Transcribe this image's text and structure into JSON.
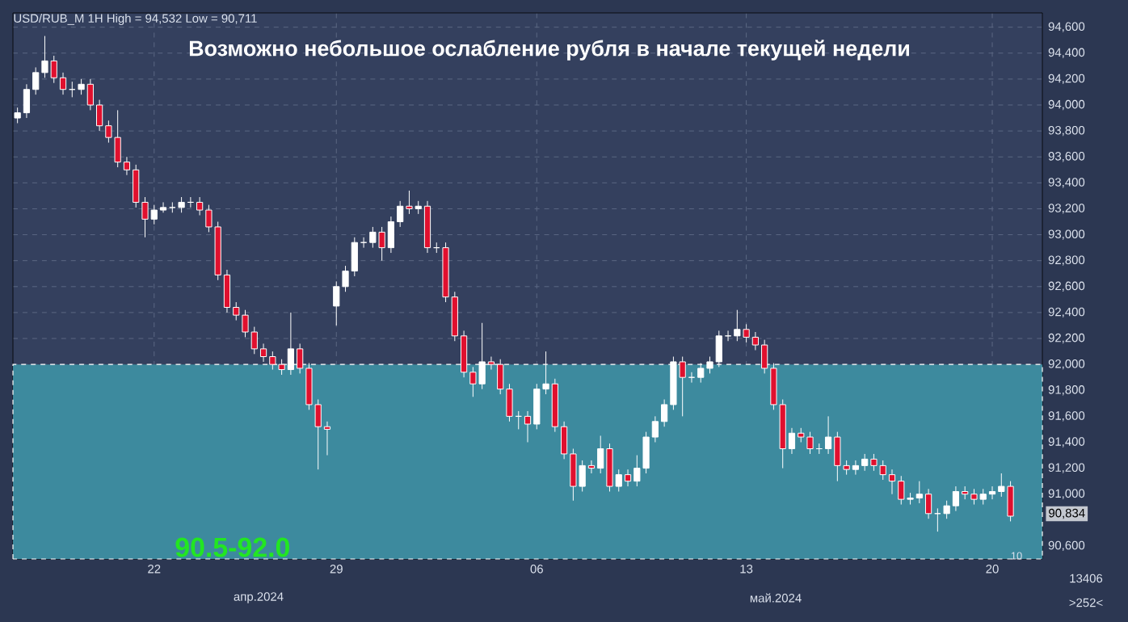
{
  "chart_data": {
    "type": "candlestick",
    "title": "Возможно небольшое ослабление рубля в начале текущей недели",
    "categories": [
      null,
      null,
      null,
      null,
      null,
      null,
      null,
      null,
      null,
      null,
      null,
      null,
      null,
      null,
      null,
      "22",
      null,
      null,
      null,
      null,
      null,
      null,
      null,
      null,
      null,
      null,
      null,
      null,
      null,
      null,
      null,
      null,
      null,
      null,
      null,
      "29",
      null,
      null,
      null,
      null,
      null,
      null,
      null,
      null,
      null,
      null,
      null,
      null,
      null,
      null,
      null,
      null,
      null,
      null,
      null,
      null,
      null,
      "06",
      null,
      null,
      null,
      null,
      null,
      null,
      null,
      null,
      null,
      null,
      null,
      null,
      null,
      null,
      null,
      null,
      null,
      null,
      null,
      null,
      null,
      null,
      "13",
      null,
      null,
      null,
      null,
      null,
      null,
      null,
      null,
      null,
      null,
      null,
      null,
      null,
      null,
      null,
      null,
      null,
      null,
      null,
      null,
      null,
      null,
      null,
      null,
      null,
      null,
      "20",
      null,
      null
    ],
    "ohlc": [
      [
        93900,
        93980,
        93860,
        93940
      ],
      [
        93940,
        94160,
        93900,
        94120
      ],
      [
        94120,
        94290,
        94080,
        94250
      ],
      [
        94250,
        94532,
        94210,
        94340
      ],
      [
        94340,
        94380,
        94170,
        94210
      ],
      [
        94210,
        94250,
        94080,
        94120
      ],
      [
        94120,
        94180,
        94060,
        94120
      ],
      [
        94120,
        94200,
        94080,
        94160
      ],
      [
        94160,
        94200,
        93960,
        94000
      ],
      [
        94000,
        94040,
        93800,
        93840
      ],
      [
        93840,
        93880,
        93710,
        93750
      ],
      [
        93750,
        93960,
        93520,
        93560
      ],
      [
        93560,
        93600,
        93460,
        93500
      ],
      [
        93500,
        93540,
        93210,
        93250
      ],
      [
        93250,
        93290,
        92980,
        93120
      ],
      [
        93120,
        93230,
        93080,
        93190
      ],
      [
        93190,
        93250,
        93170,
        93210
      ],
      [
        93210,
        93250,
        93170,
        93210
      ],
      [
        93210,
        93290,
        93170,
        93250
      ],
      [
        93250,
        93290,
        93210,
        93250
      ],
      [
        93250,
        93290,
        93150,
        93190
      ],
      [
        93190,
        93230,
        93020,
        93060
      ],
      [
        93060,
        93100,
        92650,
        92690
      ],
      [
        92690,
        92730,
        92400,
        92440
      ],
      [
        92440,
        92480,
        92340,
        92380
      ],
      [
        92380,
        92420,
        92210,
        92250
      ],
      [
        92250,
        92290,
        92080,
        92120
      ],
      [
        92120,
        92160,
        92020,
        92060
      ],
      [
        92060,
        92100,
        91960,
        92000
      ],
      [
        92000,
        92040,
        91920,
        91960
      ],
      [
        91960,
        92400,
        91920,
        92120
      ],
      [
        92120,
        92160,
        91930,
        91970
      ],
      [
        91970,
        92010,
        91650,
        91690
      ],
      [
        91690,
        91730,
        91190,
        91520
      ],
      [
        91520,
        91560,
        91300,
        91500
      ],
      [
        92450,
        92640,
        92300,
        92600
      ],
      [
        92600,
        92760,
        92560,
        92720
      ],
      [
        92720,
        92980,
        92680,
        92940
      ],
      [
        92940,
        92980,
        92900,
        92940
      ],
      [
        92940,
        93060,
        92900,
        93020
      ],
      [
        93020,
        93060,
        92800,
        92900
      ],
      [
        92900,
        93140,
        92860,
        93100
      ],
      [
        93100,
        93260,
        93060,
        93220
      ],
      [
        93220,
        93340,
        93160,
        93200
      ],
      [
        93200,
        93260,
        93160,
        93220
      ],
      [
        93220,
        93260,
        92860,
        92900
      ],
      [
        92900,
        92940,
        92860,
        92900
      ],
      [
        92900,
        92940,
        92480,
        92520
      ],
      [
        92520,
        92560,
        92180,
        92220
      ],
      [
        92220,
        92260,
        91900,
        91940
      ],
      [
        91940,
        91980,
        91750,
        91850
      ],
      [
        91850,
        92320,
        91810,
        92020
      ],
      [
        92020,
        92060,
        91960,
        92000
      ],
      [
        92000,
        92040,
        91770,
        91810
      ],
      [
        91810,
        91850,
        91560,
        91600
      ],
      [
        91600,
        91640,
        91500,
        91600
      ],
      [
        91600,
        91640,
        91400,
        91540
      ],
      [
        91540,
        91850,
        91500,
        91810
      ],
      [
        91810,
        92100,
        91770,
        91850
      ],
      [
        91850,
        91890,
        91480,
        91520
      ],
      [
        91520,
        91560,
        91270,
        91310
      ],
      [
        91310,
        91350,
        90950,
        91060
      ],
      [
        91060,
        91260,
        91020,
        91220
      ],
      [
        91220,
        91260,
        91160,
        91200
      ],
      [
        91200,
        91450,
        91160,
        91350
      ],
      [
        91350,
        91390,
        91020,
        91060
      ],
      [
        91060,
        91190,
        91020,
        91150
      ],
      [
        91150,
        91190,
        91060,
        91100
      ],
      [
        91100,
        91300,
        91060,
        91200
      ],
      [
        91200,
        91480,
        91160,
        91440
      ],
      [
        91440,
        91600,
        91400,
        91560
      ],
      [
        91560,
        91730,
        91520,
        91690
      ],
      [
        91690,
        92060,
        91650,
        92020
      ],
      [
        92020,
        92060,
        91600,
        91900
      ],
      [
        91900,
        91940,
        91860,
        91900
      ],
      [
        91900,
        92010,
        91860,
        91970
      ],
      [
        91970,
        92060,
        91930,
        92020
      ],
      [
        92020,
        92260,
        91980,
        92220
      ],
      [
        92220,
        92260,
        92180,
        92220
      ],
      [
        92220,
        92420,
        92180,
        92270
      ],
      [
        92270,
        92310,
        92170,
        92210
      ],
      [
        92210,
        92250,
        92110,
        92150
      ],
      [
        92150,
        92190,
        91930,
        91970
      ],
      [
        91970,
        92010,
        91650,
        91690
      ],
      [
        91690,
        91730,
        91200,
        91350
      ],
      [
        91350,
        91510,
        91310,
        91470
      ],
      [
        91470,
        91510,
        91400,
        91440
      ],
      [
        91440,
        91480,
        91310,
        91350
      ],
      [
        91350,
        91390,
        91310,
        91350
      ],
      [
        91350,
        91600,
        91310,
        91440
      ],
      [
        91440,
        91480,
        91100,
        91220
      ],
      [
        91220,
        91260,
        91150,
        91190
      ],
      [
        91190,
        91260,
        91150,
        91220
      ],
      [
        91220,
        91310,
        91180,
        91270
      ],
      [
        91270,
        91310,
        91180,
        91220
      ],
      [
        91220,
        91260,
        91110,
        91150
      ],
      [
        91150,
        91190,
        91000,
        91100
      ],
      [
        91100,
        91140,
        90920,
        90960
      ],
      [
        90960,
        91010,
        90920,
        90970
      ],
      [
        90970,
        91100,
        90930,
        91000
      ],
      [
        91000,
        91040,
        90810,
        90850
      ],
      [
        90850,
        90890,
        90711,
        90850
      ],
      [
        90850,
        90950,
        90810,
        90910
      ],
      [
        90910,
        91060,
        90870,
        91020
      ],
      [
        91020,
        91060,
        90960,
        91000
      ],
      [
        91000,
        91040,
        90920,
        90960
      ],
      [
        90960,
        91040,
        90920,
        91000
      ],
      [
        91000,
        91060,
        90960,
        91020
      ],
      [
        91020,
        91160,
        90980,
        91060
      ],
      [
        91060,
        91100,
        90790,
        90830
      ]
    ],
    "colors": [
      "#ffffff",
      "#ffffff",
      "#ffffff",
      "#ffffff",
      "#e0102e",
      "#e0102e",
      "#ffffff",
      "#ffffff",
      "#e0102e",
      "#e0102e",
      "#e0102e",
      "#e0102e",
      "#e0102e",
      "#e0102e",
      "#e0102e",
      "#ffffff",
      "#ffffff",
      "#ffffff",
      "#ffffff",
      "#ffffff",
      "#e0102e",
      "#e0102e",
      "#e0102e",
      "#e0102e",
      "#e0102e",
      "#e0102e",
      "#e0102e",
      "#e0102e",
      "#e0102e",
      "#e0102e",
      "#ffffff",
      "#e0102e",
      "#e0102e",
      "#e0102e",
      "#e0102e",
      "#ffffff",
      "#ffffff",
      "#ffffff",
      "#ffffff",
      "#ffffff",
      "#e0102e",
      "#ffffff",
      "#ffffff",
      "#e0102e",
      "#ffffff",
      "#e0102e",
      "#ffffff",
      "#e0102e",
      "#e0102e",
      "#e0102e",
      "#e0102e",
      "#ffffff",
      "#e0102e",
      "#e0102e",
      "#e0102e",
      "#ffffff",
      "#e0102e",
      "#ffffff",
      "#ffffff",
      "#e0102e",
      "#e0102e",
      "#e0102e",
      "#ffffff",
      "#e0102e",
      "#ffffff",
      "#e0102e",
      "#ffffff",
      "#e0102e",
      "#ffffff",
      "#ffffff",
      "#ffffff",
      "#ffffff",
      "#ffffff",
      "#e0102e",
      "#ffffff",
      "#ffffff",
      "#ffffff",
      "#ffffff",
      "#ffffff",
      "#ffffff",
      "#e0102e",
      "#e0102e",
      "#e0102e",
      "#e0102e",
      "#e0102e",
      "#ffffff",
      "#e0102e",
      "#e0102e",
      "#ffffff",
      "#ffffff",
      "#e0102e",
      "#e0102e",
      "#ffffff",
      "#ffffff",
      "#e0102e",
      "#e0102e",
      "#e0102e",
      "#e0102e",
      "#ffffff",
      "#ffffff",
      "#e0102e",
      "#ffffff",
      "#ffffff",
      "#ffffff",
      "#e0102e",
      "#e0102e",
      "#ffffff",
      "#ffffff",
      "#ffffff",
      "#e0102e"
    ],
    "ylim": [
      90500,
      94710
    ],
    "yticks": [
      {
        "value": 90600,
        "label": "90,600"
      },
      {
        "value": 90800,
        "label": null
      },
      {
        "value": 91000,
        "label": "91,000"
      },
      {
        "value": 91200,
        "label": "91,200"
      },
      {
        "value": 91400,
        "label": "91,400"
      },
      {
        "value": 91600,
        "label": "91,600"
      },
      {
        "value": 91800,
        "label": "91,800"
      },
      {
        "value": 92000,
        "label": "92,000"
      },
      {
        "value": 92200,
        "label": "92,200"
      },
      {
        "value": 92400,
        "label": "92,400"
      },
      {
        "value": 92600,
        "label": "92,600"
      },
      {
        "value": 92800,
        "label": "92,800"
      },
      {
        "value": 93000,
        "label": "93,000"
      },
      {
        "value": 93200,
        "label": "93,200"
      },
      {
        "value": 93400,
        "label": "93,400"
      },
      {
        "value": 93600,
        "label": "93,600"
      },
      {
        "value": 93800,
        "label": "93,800"
      },
      {
        "value": 94000,
        "label": "94,000"
      },
      {
        "value": 94200,
        "label": "94,200"
      },
      {
        "value": 94400,
        "label": "94,400"
      },
      {
        "value": 94600,
        "label": "94,600"
      }
    ],
    "grid": true,
    "bands": [
      {
        "axis": "y",
        "from": 90500,
        "to": 92000,
        "label": "90.5-92.0",
        "color": "#3d8a9e"
      }
    ],
    "annotations": [
      "USD/RUB_M 1H High = 94,532 Low = 90,711",
      "апр.2024",
      "май.2024",
      "13406",
      ">252<",
      "10",
      "90,834"
    ]
  }
}
